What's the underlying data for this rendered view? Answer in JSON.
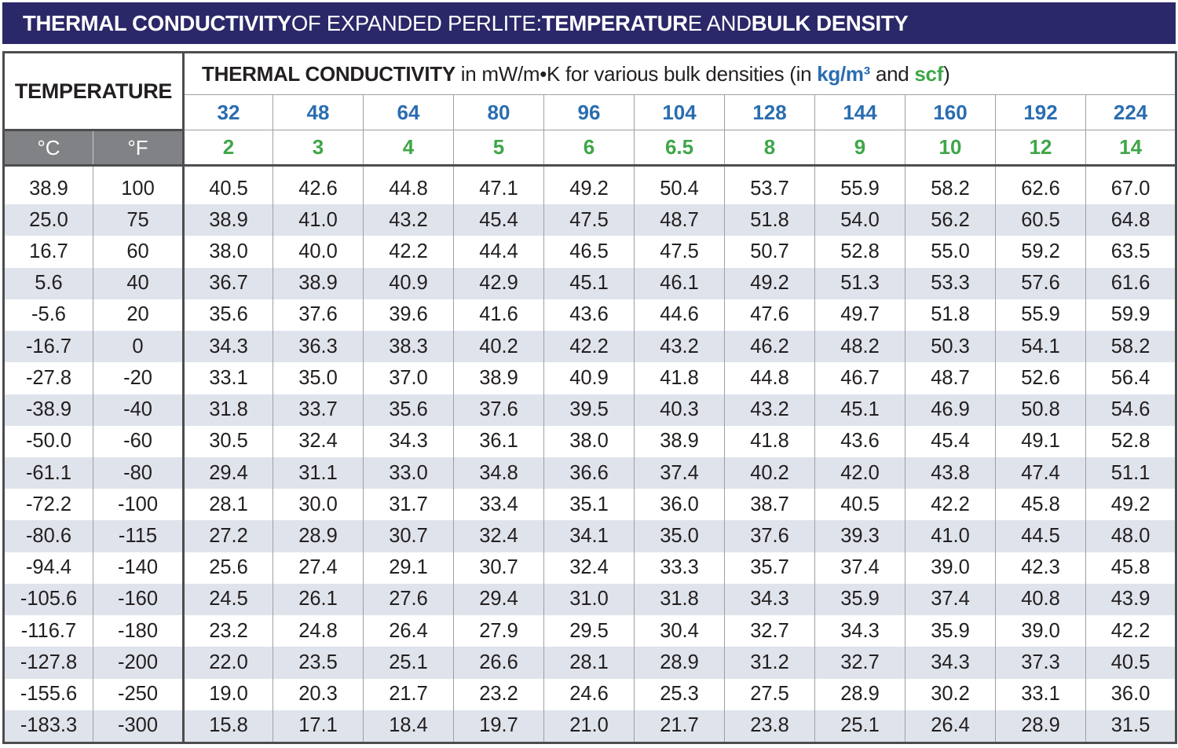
{
  "title": {
    "part1": "THERMAL CONDUCTIVITY",
    "part2": " OF EXPANDED PERLITE: ",
    "part3": "TEMPERATUR",
    "part4": "E AND ",
    "part5": "BULK DENSITY"
  },
  "header": {
    "temperature": "TEMPERATURE",
    "conductivity_bold": "THERMAL CONDUCTIVITY",
    "conductivity_rest": " in mW/m•K for various bulk densities (in ",
    "kg_unit": "kg/m³",
    "and": " and ",
    "scf_unit": "scf",
    "close": ")",
    "celsius": "°C",
    "fahrenheit": "°F",
    "densities_kg": [
      "32",
      "48",
      "64",
      "80",
      "96",
      "104",
      "128",
      "144",
      "160",
      "192",
      "224"
    ],
    "densities_scf": [
      "2",
      "3",
      "4",
      "5",
      "6",
      "6.5",
      "8",
      "9",
      "10",
      "12",
      "14"
    ]
  },
  "rows": [
    {
      "c": "38.9",
      "f": "100",
      "v": [
        "40.5",
        "42.6",
        "44.8",
        "47.1",
        "49.2",
        "50.4",
        "53.7",
        "55.9",
        "58.2",
        "62.6",
        "67.0"
      ]
    },
    {
      "c": "25.0",
      "f": "75",
      "v": [
        "38.9",
        "41.0",
        "43.2",
        "45.4",
        "47.5",
        "48.7",
        "51.8",
        "54.0",
        "56.2",
        "60.5",
        "64.8"
      ]
    },
    {
      "c": "16.7",
      "f": "60",
      "v": [
        "38.0",
        "40.0",
        "42.2",
        "44.4",
        "46.5",
        "47.5",
        "50.7",
        "52.8",
        "55.0",
        "59.2",
        "63.5"
      ]
    },
    {
      "c": "5.6",
      "f": "40",
      "v": [
        "36.7",
        "38.9",
        "40.9",
        "42.9",
        "45.1",
        "46.1",
        "49.2",
        "51.3",
        "53.3",
        "57.6",
        "61.6"
      ]
    },
    {
      "c": "-5.6",
      "f": "20",
      "v": [
        "35.6",
        "37.6",
        "39.6",
        "41.6",
        "43.6",
        "44.6",
        "47.6",
        "49.7",
        "51.8",
        "55.9",
        "59.9"
      ]
    },
    {
      "c": "-16.7",
      "f": "0",
      "v": [
        "34.3",
        "36.3",
        "38.3",
        "40.2",
        "42.2",
        "43.2",
        "46.2",
        "48.2",
        "50.3",
        "54.1",
        "58.2"
      ]
    },
    {
      "c": "-27.8",
      "f": "-20",
      "v": [
        "33.1",
        "35.0",
        "37.0",
        "38.9",
        "40.9",
        "41.8",
        "44.8",
        "46.7",
        "48.7",
        "52.6",
        "56.4"
      ]
    },
    {
      "c": "-38.9",
      "f": "-40",
      "v": [
        "31.8",
        "33.7",
        "35.6",
        "37.6",
        "39.5",
        "40.3",
        "43.2",
        "45.1",
        "46.9",
        "50.8",
        "54.6"
      ]
    },
    {
      "c": "-50.0",
      "f": "-60",
      "v": [
        "30.5",
        "32.4",
        "34.3",
        "36.1",
        "38.0",
        "38.9",
        "41.8",
        "43.6",
        "45.4",
        "49.1",
        "52.8"
      ]
    },
    {
      "c": "-61.1",
      "f": "-80",
      "v": [
        "29.4",
        "31.1",
        "33.0",
        "34.8",
        "36.6",
        "37.4",
        "40.2",
        "42.0",
        "43.8",
        "47.4",
        "51.1"
      ]
    },
    {
      "c": "-72.2",
      "f": "-100",
      "v": [
        "28.1",
        "30.0",
        "31.7",
        "33.4",
        "35.1",
        "36.0",
        "38.7",
        "40.5",
        "42.2",
        "45.8",
        "49.2"
      ]
    },
    {
      "c": "-80.6",
      "f": "-115",
      "v": [
        "27.2",
        "28.9",
        "30.7",
        "32.4",
        "34.1",
        "35.0",
        "37.6",
        "39.3",
        "41.0",
        "44.5",
        "48.0"
      ]
    },
    {
      "c": "-94.4",
      "f": "-140",
      "v": [
        "25.6",
        "27.4",
        "29.1",
        "30.7",
        "32.4",
        "33.3",
        "35.7",
        "37.4",
        "39.0",
        "42.3",
        "45.8"
      ]
    },
    {
      "c": "-105.6",
      "f": "-160",
      "v": [
        "24.5",
        "26.1",
        "27.6",
        "29.4",
        "31.0",
        "31.8",
        "34.3",
        "35.9",
        "37.4",
        "40.8",
        "43.9"
      ]
    },
    {
      "c": "-116.7",
      "f": "-180",
      "v": [
        "23.2",
        "24.8",
        "26.4",
        "27.9",
        "29.5",
        "30.4",
        "32.7",
        "34.3",
        "35.9",
        "39.0",
        "42.2"
      ]
    },
    {
      "c": "-127.8",
      "f": "-200",
      "v": [
        "22.0",
        "23.5",
        "25.1",
        "26.6",
        "28.1",
        "28.9",
        "31.2",
        "32.7",
        "34.3",
        "37.3",
        "40.5"
      ]
    },
    {
      "c": "-155.6",
      "f": "-250",
      "v": [
        "19.0",
        "20.3",
        "21.7",
        "23.2",
        "24.6",
        "25.3",
        "27.5",
        "28.9",
        "30.2",
        "33.1",
        "36.0"
      ]
    },
    {
      "c": "-183.3",
      "f": "-300",
      "v": [
        "15.8",
        "17.1",
        "18.4",
        "19.7",
        "21.0",
        "21.7",
        "23.8",
        "25.1",
        "26.4",
        "28.9",
        "31.5"
      ]
    }
  ],
  "colors": {
    "title_bg": "#2b2869",
    "kg_blue": "#2a6db0",
    "scf_green": "#3fa648",
    "unit_bg": "#808285",
    "stripe": "#dfe3eb"
  }
}
